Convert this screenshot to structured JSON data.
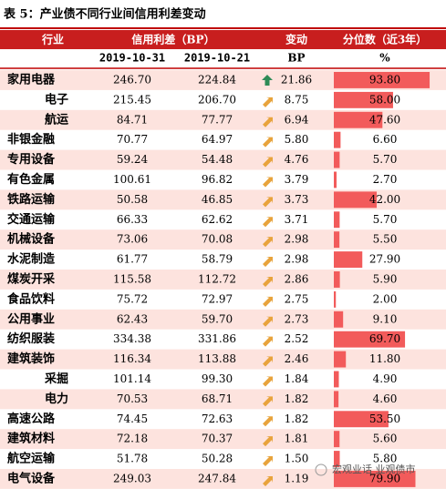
{
  "title": "表 5：产业债不同行业间信用利差变动",
  "header": {
    "industry": "行业",
    "spread": "信用利差（BP）",
    "change": "变动",
    "pct": "分位数（近3年）",
    "date1": "2019-10-31",
    "date2": "2019-10-21",
    "change_unit": "BP",
    "pct_unit": "%"
  },
  "table": {
    "rows": [
      [
        "家用电器",
        "246.70",
        "224.84",
        "21.86",
        "93.80"
      ],
      [
        "电子",
        "215.45",
        "206.70",
        "8.75",
        "58.00"
      ],
      [
        "航运",
        "84.71",
        "77.77",
        "6.94",
        "47.60"
      ],
      [
        "非银金融",
        "70.77",
        "64.97",
        "5.80",
        "6.60"
      ],
      [
        "专用设备",
        "59.24",
        "54.48",
        "4.76",
        "5.70"
      ],
      [
        "有色金属",
        "100.61",
        "96.82",
        "3.79",
        "2.70"
      ],
      [
        "铁路运输",
        "50.58",
        "46.85",
        "3.73",
        "42.00"
      ],
      [
        "交通运输",
        "66.33",
        "62.62",
        "3.71",
        "5.70"
      ],
      [
        "机械设备",
        "73.06",
        "70.08",
        "2.98",
        "5.50"
      ],
      [
        "水泥制造",
        "61.77",
        "58.79",
        "2.98",
        "27.90"
      ],
      [
        "煤炭开采",
        "115.58",
        "112.72",
        "2.86",
        "5.90"
      ],
      [
        "食品饮料",
        "75.72",
        "72.97",
        "2.75",
        "2.00"
      ],
      [
        "公用事业",
        "62.43",
        "59.70",
        "2.73",
        "9.10"
      ],
      [
        "纺织服装",
        "334.38",
        "331.86",
        "2.52",
        "69.70"
      ],
      [
        "建筑装饰",
        "116.34",
        "113.88",
        "2.46",
        "11.80"
      ],
      [
        "采掘",
        "101.14",
        "99.30",
        "1.84",
        "4.90"
      ],
      [
        "电力",
        "70.53",
        "68.71",
        "1.82",
        "4.60"
      ],
      [
        "高速公路",
        "74.45",
        "72.63",
        "1.82",
        "53.50"
      ],
      [
        "建筑材料",
        "72.18",
        "70.37",
        "1.81",
        "5.60"
      ],
      [
        "航空运输",
        "51.78",
        "50.28",
        "1.50",
        "5.80"
      ],
      [
        "电气设备",
        "249.03",
        "247.84",
        "1.19",
        "79.90"
      ]
    ]
  },
  "watermark": "宏观业话 业观债市"
}
